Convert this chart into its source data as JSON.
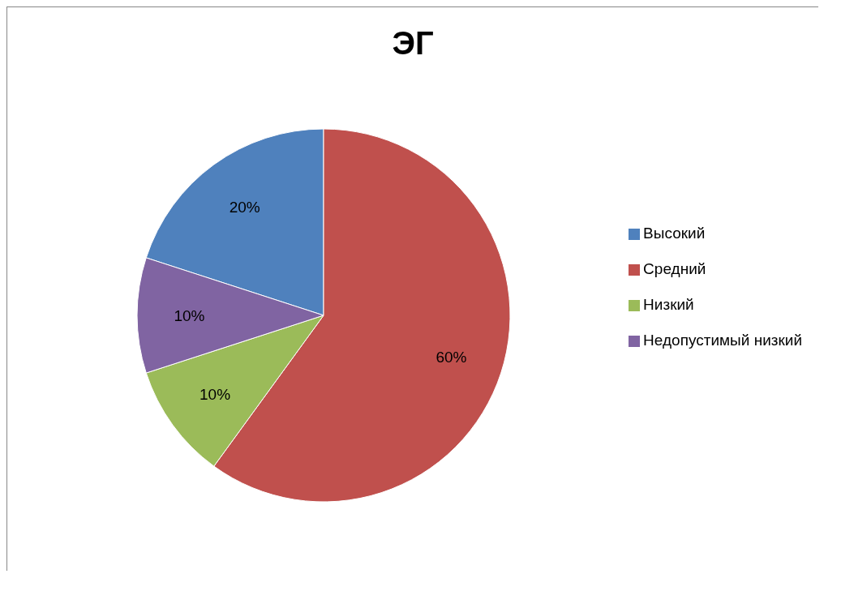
{
  "chart_data": {
    "type": "pie",
    "title": "ЭГ",
    "categories": [
      "Высокий",
      "Средний",
      "Низкий",
      "Недопустимый низкий"
    ],
    "values": [
      20,
      60,
      10,
      10
    ],
    "value_labels": [
      "20%",
      "60%",
      "10%",
      "10%"
    ],
    "colors": [
      "#4f81bd",
      "#c0504d",
      "#9bbb59",
      "#8064a2"
    ],
    "legend": "right"
  }
}
